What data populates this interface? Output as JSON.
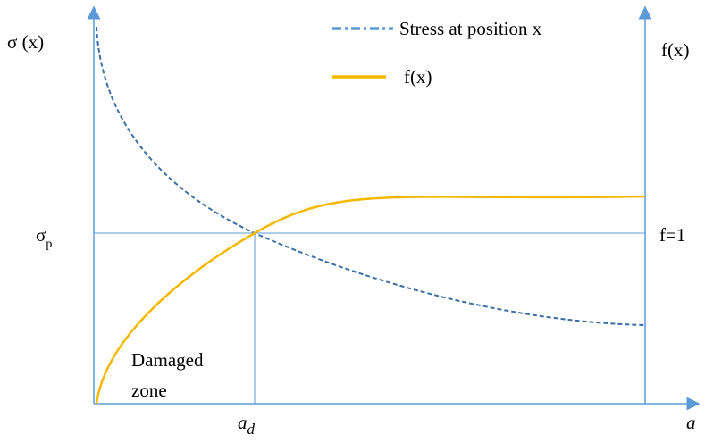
{
  "legend": [
    {
      "label": "Stress at position x"
    },
    {
      "label": "f(x)"
    }
  ],
  "left_axis": {
    "label": "σ (x)"
  },
  "right_axis": {
    "label": "f(x)"
  },
  "x_axis": {
    "label": "a"
  },
  "sigma_p": {
    "base": "σ",
    "sub": "p"
  },
  "f_level": {
    "label": "f=1"
  },
  "a_d": {
    "base": "a",
    "sub": "d"
  },
  "zone": {
    "lines": [
      "Damaged",
      "zone"
    ]
  }
}
